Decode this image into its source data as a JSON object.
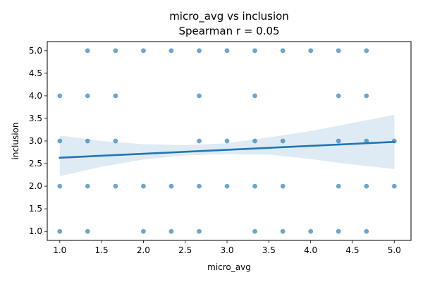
{
  "chart_data": {
    "type": "scatter",
    "title": "micro_avg vs inclusion",
    "subtitle": "Spearman r = 0.05",
    "xlabel": "micro_avg",
    "ylabel": "inclusion",
    "xlim": [
      0.85,
      5.2
    ],
    "ylim": [
      0.8,
      5.2
    ],
    "x_ticks": [
      "1.0",
      "1.5",
      "2.0",
      "2.5",
      "3.0",
      "3.5",
      "4.0",
      "4.5",
      "5.0"
    ],
    "y_ticks": [
      "1.0",
      "1.5",
      "2.0",
      "2.5",
      "3.0",
      "3.5",
      "4.0",
      "4.5",
      "5.0"
    ],
    "grid": false,
    "colors": {
      "points": "#1f77b4",
      "line": "#1f77b4",
      "band": "#1f77b4"
    },
    "points": [
      [
        1.0,
        1
      ],
      [
        1.0,
        2
      ],
      [
        1.0,
        3
      ],
      [
        1.0,
        4
      ],
      [
        1.333,
        1
      ],
      [
        1.333,
        2
      ],
      [
        1.333,
        3
      ],
      [
        1.333,
        4
      ],
      [
        1.333,
        5
      ],
      [
        1.667,
        2
      ],
      [
        1.667,
        3
      ],
      [
        1.667,
        4
      ],
      [
        1.667,
        5
      ],
      [
        2.0,
        1
      ],
      [
        2.0,
        2
      ],
      [
        2.0,
        5
      ],
      [
        2.333,
        1
      ],
      [
        2.333,
        2
      ],
      [
        2.333,
        5
      ],
      [
        2.667,
        1
      ],
      [
        2.667,
        2
      ],
      [
        2.667,
        3
      ],
      [
        2.667,
        4
      ],
      [
        2.667,
        5
      ],
      [
        3.0,
        2
      ],
      [
        3.0,
        3
      ],
      [
        3.0,
        5
      ],
      [
        3.333,
        1
      ],
      [
        3.333,
        2
      ],
      [
        3.333,
        3
      ],
      [
        3.333,
        4
      ],
      [
        3.333,
        5
      ],
      [
        3.667,
        1
      ],
      [
        3.667,
        2
      ],
      [
        3.667,
        3
      ],
      [
        3.667,
        5
      ],
      [
        4.0,
        1
      ],
      [
        4.0,
        5
      ],
      [
        4.333,
        1
      ],
      [
        4.333,
        2
      ],
      [
        4.333,
        3
      ],
      [
        4.333,
        4
      ],
      [
        4.333,
        5
      ],
      [
        4.667,
        1
      ],
      [
        4.667,
        2
      ],
      [
        4.667,
        3
      ],
      [
        4.667,
        4
      ],
      [
        4.667,
        5
      ],
      [
        5.0,
        2
      ],
      [
        5.0,
        3
      ]
    ],
    "regression": {
      "x_start": 1.0,
      "y_start": 2.63,
      "x_end": 5.0,
      "y_end": 2.98
    },
    "confidence_band": {
      "x": [
        1.0,
        1.5,
        2.0,
        2.5,
        3.0,
        3.5,
        4.0,
        4.5,
        5.0
      ],
      "upper": [
        3.12,
        3.0,
        2.93,
        2.91,
        2.95,
        3.08,
        3.22,
        3.4,
        3.58
      ],
      "lower": [
        2.22,
        2.43,
        2.59,
        2.68,
        2.71,
        2.7,
        2.6,
        2.48,
        2.38
      ]
    }
  }
}
